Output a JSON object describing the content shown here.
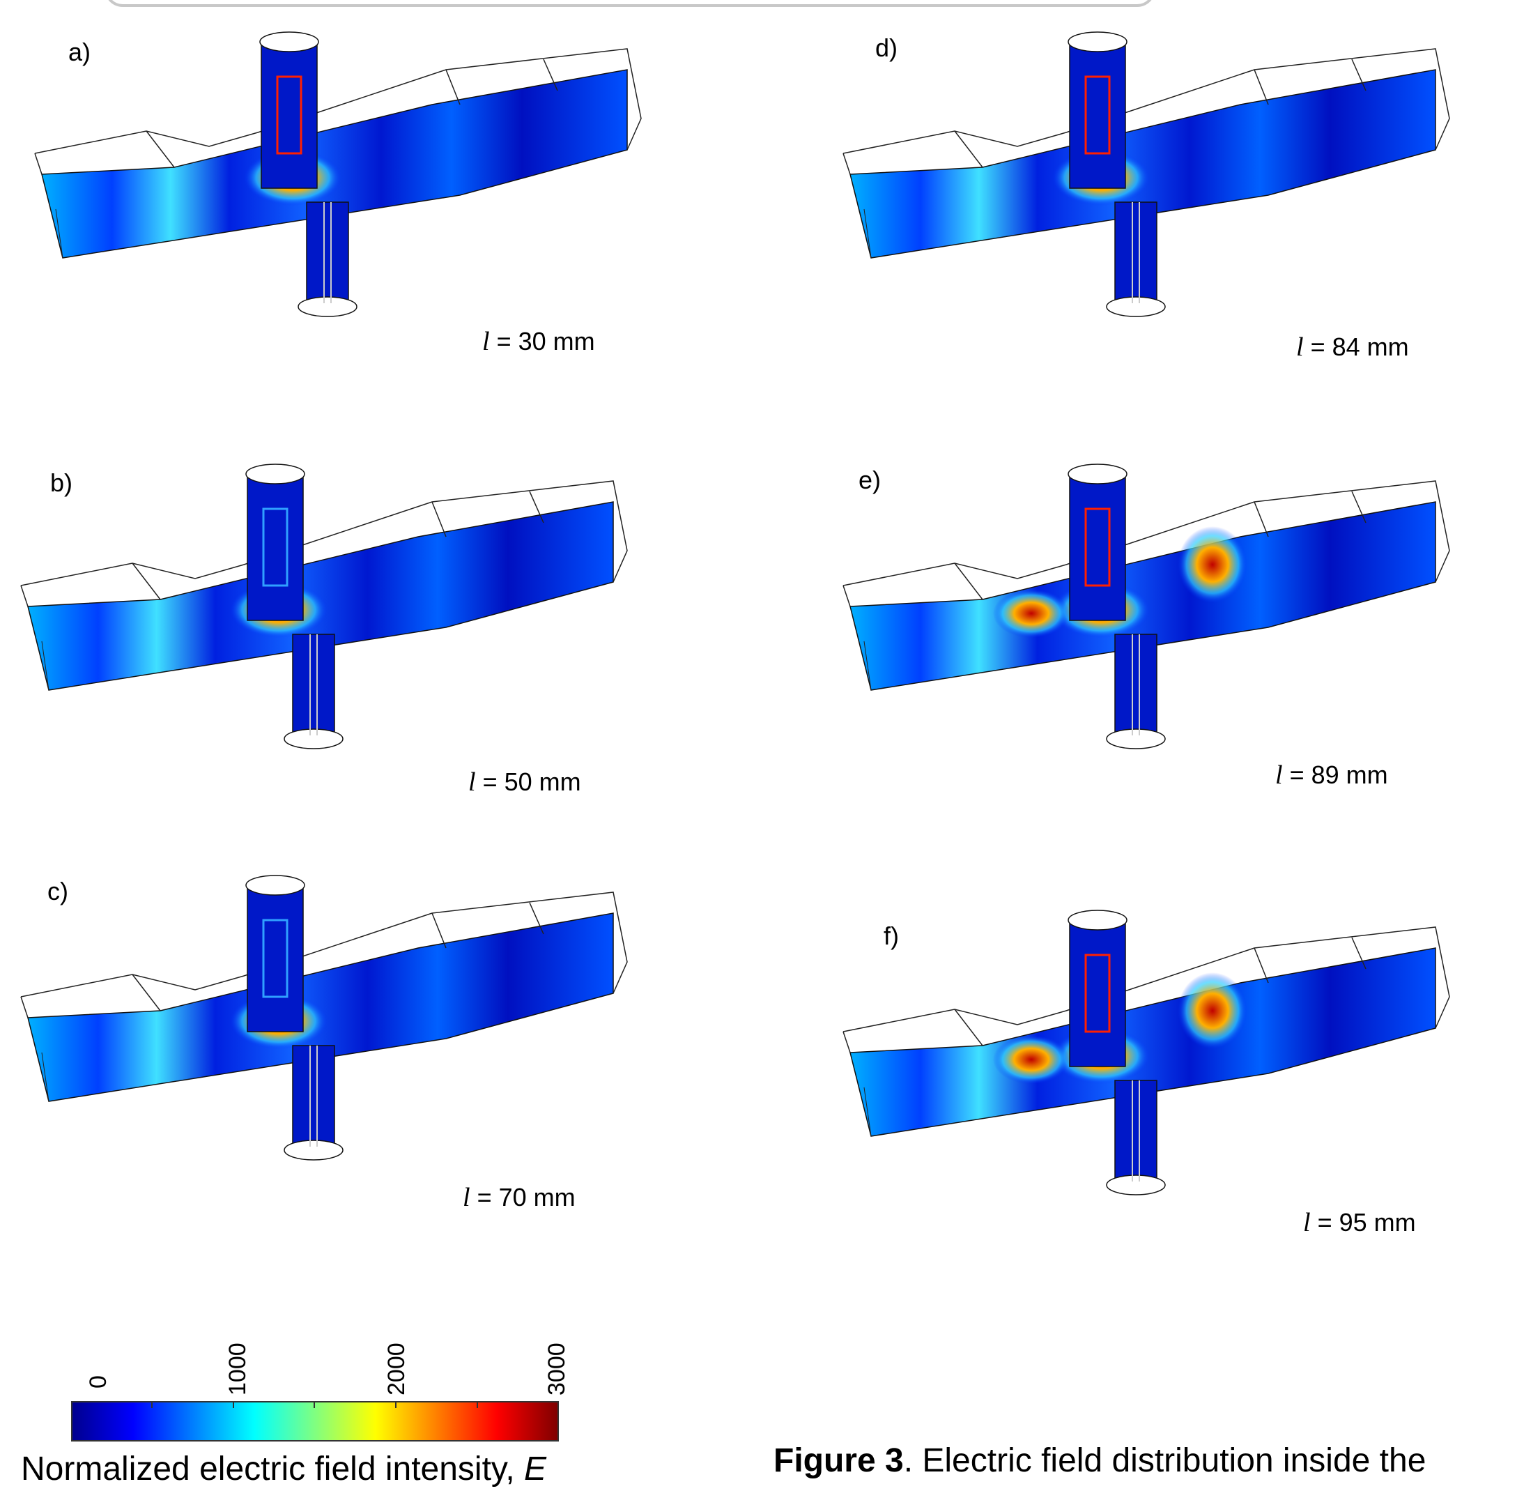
{
  "panels": [
    {
      "label": "a)",
      "length_text": "= 30 mm",
      "length_symbol": "l",
      "hotspot_intensity": 0.8
    },
    {
      "label": "b)",
      "length_text": "= 50 mm",
      "length_symbol": "l",
      "hotspot_intensity": 0.6
    },
    {
      "label": "c)",
      "length_text": "= 70 mm",
      "length_symbol": "l",
      "hotspot_intensity": 0.65
    },
    {
      "label": "d)",
      "length_text": "= 84 mm",
      "length_symbol": "l",
      "hotspot_intensity": 0.85
    },
    {
      "label": "e)",
      "length_text": "= 89 mm",
      "length_symbol": "l",
      "hotspot_intensity": 1.0
    },
    {
      "label": "f)",
      "length_text": "= 95 mm",
      "length_symbol": "l",
      "hotspot_intensity": 0.95
    }
  ],
  "colorbar": {
    "tick_labels": [
      "0",
      "1000",
      "2000",
      "3000"
    ],
    "title_text": "Normalized electric field intensity,",
    "title_symbol": "E",
    "colors": [
      "#00008f",
      "#0000ff",
      "#0080ff",
      "#00ffff",
      "#80ff80",
      "#ffff00",
      "#ff8000",
      "#ff0000",
      "#800000"
    ]
  },
  "caption": {
    "bold": "Figure 3",
    "text": ". Electric field distribution inside the"
  }
}
